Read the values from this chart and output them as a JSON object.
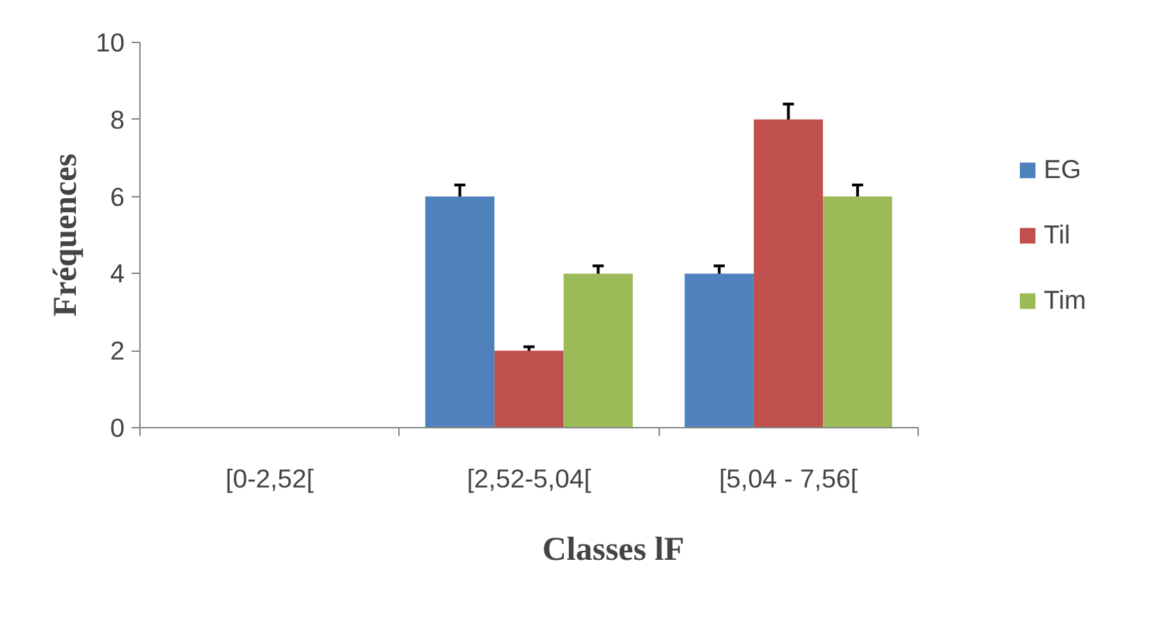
{
  "chart_data": {
    "type": "bar",
    "xlabel": "Classes lF",
    "ylabel": "Fréquences",
    "categories": [
      "[0-2,52[",
      "[2,52-5,04[",
      "[5,04 - 7,56["
    ],
    "series": [
      {
        "name": "EG",
        "color": "#4f81bd",
        "values": [
          0,
          6,
          4
        ],
        "errors": [
          null,
          0.3,
          0.2
        ]
      },
      {
        "name": "Til",
        "color": "#c0504d",
        "values": [
          0,
          2,
          8
        ],
        "errors": [
          null,
          0.1,
          0.4
        ]
      },
      {
        "name": "Tim",
        "color": "#9bbb59",
        "values": [
          0,
          4,
          6
        ],
        "errors": [
          null,
          0.2,
          0.3
        ]
      }
    ],
    "ylim": [
      0,
      10
    ],
    "yticks": [
      0,
      2,
      4,
      6,
      8,
      10
    ],
    "grid": false,
    "legend": "right"
  }
}
